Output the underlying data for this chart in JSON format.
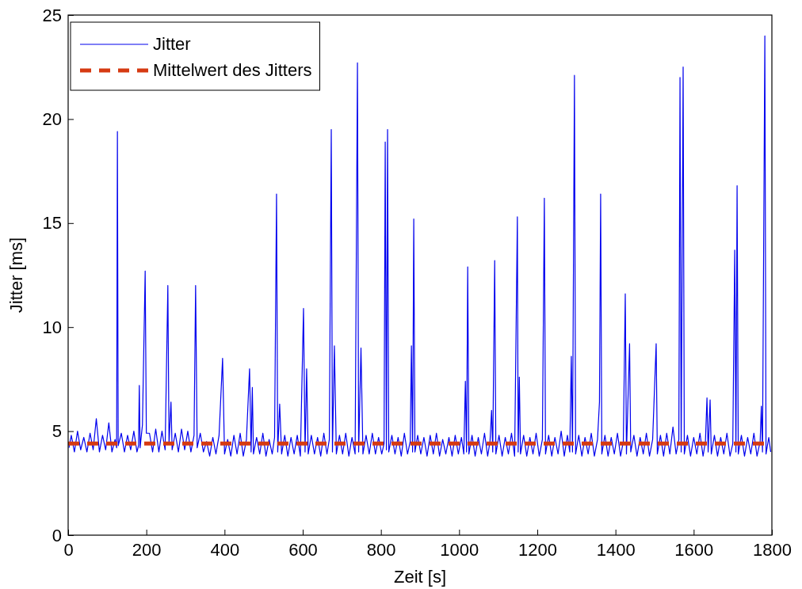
{
  "chart_data": {
    "type": "line",
    "xlabel": "Zeit [s]",
    "ylabel": "Jitter [ms]",
    "xlim": [
      0,
      1800
    ],
    "ylim": [
      0,
      25
    ],
    "xticks": [
      0,
      200,
      400,
      600,
      800,
      1000,
      1200,
      1400,
      1600,
      1800
    ],
    "yticks": [
      0,
      5,
      10,
      15,
      20,
      25
    ],
    "grid": false,
    "legend": "top left",
    "series": [
      {
        "name": "Jitter",
        "color": "#0000ee",
        "line_style": "solid",
        "x": [
          2,
          8,
          16,
          24,
          32,
          40,
          48,
          56,
          64,
          72,
          80,
          88,
          96,
          104,
          112,
          120,
          124,
          126,
          128,
          136,
          144,
          152,
          160,
          168,
          176,
          180,
          182,
          184,
          190,
          197,
          200,
          208,
          216,
          224,
          232,
          240,
          248,
          255,
          258,
          263,
          266,
          274,
          282,
          290,
          298,
          306,
          314,
          322,
          326,
          330,
          338,
          346,
          354,
          362,
          370,
          378,
          386,
          395,
          400,
          408,
          416,
          424,
          432,
          440,
          448,
          456,
          464,
          468,
          471,
          474,
          482,
          490,
          498,
          506,
          514,
          522,
          528,
          533,
          536,
          541,
          546,
          554,
          562,
          570,
          578,
          586,
          594,
          602,
          606,
          610,
          614,
          622,
          630,
          638,
          646,
          654,
          662,
          668,
          673,
          676,
          681,
          686,
          694,
          702,
          710,
          718,
          726,
          734,
          740,
          743,
          749,
          754,
          762,
          770,
          778,
          786,
          794,
          802,
          808,
          811,
          814,
          817,
          820,
          828,
          836,
          844,
          852,
          860,
          868,
          875,
          878,
          881,
          884,
          887,
          894,
          902,
          910,
          918,
          926,
          934,
          942,
          950,
          958,
          966,
          974,
          982,
          990,
          998,
          1006,
          1012,
          1016,
          1019,
          1022,
          1025,
          1033,
          1041,
          1049,
          1057,
          1065,
          1073,
          1079,
          1083,
          1086,
          1091,
          1094,
          1102,
          1110,
          1118,
          1126,
          1134,
          1142,
          1149,
          1151,
          1154,
          1157,
          1165,
          1173,
          1181,
          1189,
          1197,
          1205,
          1213,
          1218,
          1221,
          1229,
          1237,
          1245,
          1253,
          1261,
          1269,
          1277,
          1283,
          1287,
          1290,
          1295,
          1298,
          1306,
          1314,
          1322,
          1330,
          1338,
          1346,
          1354,
          1359,
          1362,
          1365,
          1373,
          1381,
          1389,
          1397,
          1405,
          1413,
          1420,
          1425,
          1428,
          1436,
          1439,
          1447,
          1455,
          1463,
          1471,
          1479,
          1487,
          1495,
          1504,
          1507,
          1515,
          1523,
          1531,
          1539,
          1547,
          1555,
          1562,
          1565,
          1568,
          1573,
          1576,
          1584,
          1592,
          1600,
          1608,
          1616,
          1624,
          1630,
          1634,
          1637,
          1642,
          1645,
          1653,
          1661,
          1669,
          1677,
          1685,
          1693,
          1700,
          1705,
          1708,
          1711,
          1714,
          1722,
          1730,
          1738,
          1746,
          1754,
          1762,
          1770,
          1773,
          1776,
          1782,
          1785,
          1792,
          1797
        ],
        "values": [
          4.2,
          4.8,
          4.0,
          5.0,
          4.1,
          4.7,
          4.0,
          4.9,
          4.1,
          5.6,
          4.0,
          4.8,
          4.1,
          5.4,
          4.0,
          4.6,
          4.2,
          19.4,
          4.3,
          4.9,
          4.0,
          4.8,
          4.1,
          5.0,
          4.0,
          4.3,
          7.2,
          4.2,
          5.3,
          12.7,
          4.9,
          4.9,
          4.0,
          5.1,
          4.0,
          5.0,
          4.1,
          12.0,
          4.4,
          6.4,
          4.1,
          4.9,
          4.0,
          5.1,
          4.1,
          5.0,
          4.0,
          4.8,
          12.0,
          4.2,
          4.9,
          4.0,
          4.5,
          3.8,
          4.7,
          3.9,
          4.8,
          8.5,
          3.9,
          4.6,
          3.8,
          4.8,
          3.9,
          4.9,
          3.8,
          4.6,
          8.0,
          4.0,
          7.1,
          3.9,
          4.7,
          3.9,
          4.9,
          3.8,
          4.6,
          3.9,
          4.7,
          16.4,
          4.0,
          6.3,
          3.9,
          4.8,
          3.8,
          4.7,
          3.9,
          4.8,
          3.8,
          10.9,
          4.0,
          8.0,
          3.9,
          4.8,
          3.9,
          4.7,
          3.8,
          4.9,
          3.9,
          4.6,
          19.5,
          4.0,
          9.1,
          3.9,
          4.8,
          3.9,
          4.9,
          3.8,
          4.7,
          3.9,
          22.7,
          4.0,
          9.0,
          3.9,
          4.8,
          3.9,
          4.9,
          3.9,
          4.7,
          3.9,
          4.4,
          18.9,
          4.1,
          19.5,
          4.0,
          4.8,
          3.9,
          4.7,
          3.8,
          4.9,
          3.9,
          4.5,
          9.1,
          4.0,
          15.2,
          4.0,
          4.8,
          3.9,
          4.7,
          3.8,
          4.8,
          3.9,
          4.9,
          3.8,
          4.6,
          3.9,
          4.7,
          3.8,
          4.8,
          3.9,
          4.7,
          3.9,
          7.4,
          4.0,
          12.9,
          3.9,
          4.8,
          3.8,
          4.7,
          3.9,
          4.9,
          3.8,
          4.5,
          6.0,
          4.0,
          13.2,
          3.9,
          4.8,
          3.8,
          4.7,
          3.9,
          4.9,
          3.8,
          15.3,
          4.0,
          7.6,
          3.9,
          4.8,
          3.8,
          4.7,
          3.9,
          4.9,
          3.8,
          4.6,
          16.2,
          3.9,
          4.8,
          3.8,
          4.7,
          3.9,
          5.0,
          3.8,
          4.8,
          4.0,
          8.6,
          4.0,
          22.1,
          3.9,
          4.8,
          3.8,
          4.7,
          3.9,
          4.9,
          3.8,
          4.6,
          6.4,
          16.4,
          3.9,
          4.8,
          3.8,
          4.7,
          3.9,
          4.9,
          3.8,
          4.5,
          11.6,
          3.9,
          9.2,
          4.0,
          4.8,
          3.8,
          4.7,
          3.9,
          4.9,
          3.8,
          4.6,
          9.2,
          3.9,
          4.8,
          3.8,
          4.9,
          3.9,
          5.2,
          3.9,
          4.6,
          22.0,
          4.0,
          22.5,
          3.9,
          4.8,
          3.8,
          4.7,
          3.9,
          4.9,
          3.8,
          4.5,
          6.6,
          4.0,
          6.5,
          3.9,
          4.8,
          3.8,
          4.7,
          3.9,
          4.9,
          3.8,
          4.4,
          13.7,
          4.0,
          16.8,
          3.9,
          4.8,
          3.8,
          4.7,
          3.9,
          4.9,
          3.8,
          4.5,
          6.2,
          4.0,
          24.0,
          3.9,
          4.7,
          4.0
        ]
      },
      {
        "name": "Mittelwert des Jitters",
        "color": "#d63a12",
        "line_style": "dashed",
        "x": [
          0,
          1800
        ],
        "values": [
          4.4,
          4.4
        ]
      }
    ]
  }
}
